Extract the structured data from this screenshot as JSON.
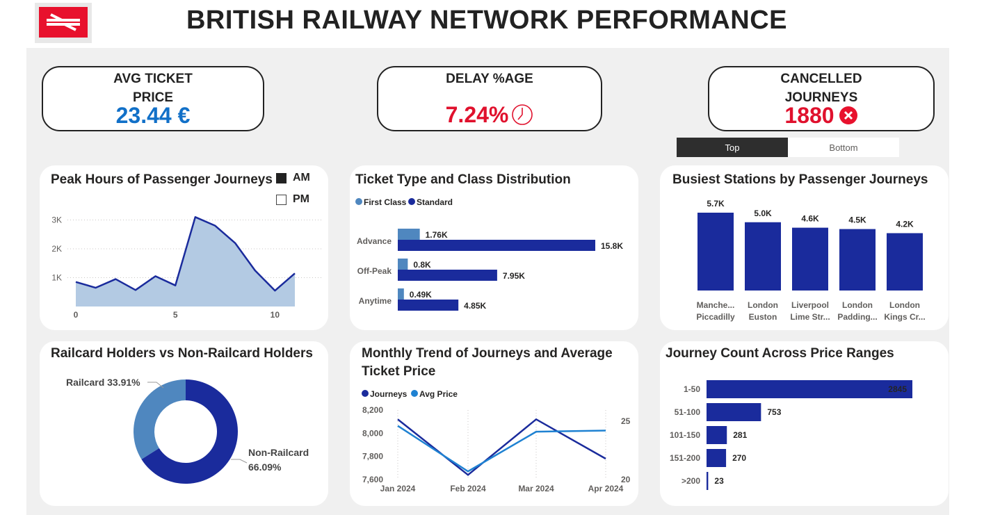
{
  "header": {
    "title": "BRITISH RAILWAY NETWORK PERFORMANCE",
    "brand_color": "#e8112d"
  },
  "kpis": {
    "avg_ticket": {
      "label_line1": "AVG TICKET",
      "label_line2": "PRICE",
      "value": "23.44 €",
      "color": "#1170c8"
    },
    "delay": {
      "label": "DELAY %AGE",
      "value": "7.24%",
      "icon": "clock-icon",
      "color": "#e0112d"
    },
    "cancelled": {
      "label_line1": "CANCELLED",
      "label_line2": "JOURNEYS",
      "value": "1880",
      "icon": "x-circle-icon",
      "color": "#e0112d"
    }
  },
  "toggle": {
    "top_label": "Top",
    "bottom_label": "Bottom",
    "selected": "Top"
  },
  "charts": {
    "peak_hours": {
      "title": "Peak Hours of Passenger Journeys",
      "legend": [
        {
          "label": "AM",
          "checked": true
        },
        {
          "label": "PM",
          "checked": false
        }
      ],
      "ytick_labels": [
        "1K",
        "2K",
        "3K"
      ],
      "xtick_labels": [
        "0",
        "5",
        "10"
      ]
    },
    "ticket_type": {
      "title": "Ticket Type and Class Distribution",
      "legend": [
        "First Class",
        "Standard"
      ]
    },
    "busiest": {
      "title": "Busiest Stations by Passenger Journeys"
    },
    "railcard": {
      "title": "Railcard Holders vs Non-Railcard Holders",
      "label_railcard": "Railcard 33.91%",
      "label_non_line1": "Non-Railcard",
      "label_non_line2": "66.09%"
    },
    "monthly": {
      "title_line1": "Monthly Trend of Journeys and Average",
      "title_line2": "Ticket Price",
      "legend": [
        "Journeys",
        "Avg Price"
      ],
      "left_ticks": [
        "7,600",
        "7,800",
        "8,000",
        "8,200"
      ],
      "right_ticks": [
        "20",
        "25"
      ]
    },
    "price_ranges": {
      "title": "Journey Count Across Price Ranges"
    }
  },
  "chart_data": [
    {
      "type": "area",
      "title": "Peak Hours of Passenger Journeys",
      "x": [
        0,
        1,
        2,
        3,
        4,
        5,
        6,
        7,
        8,
        9,
        10,
        11
      ],
      "values": [
        850,
        650,
        950,
        570,
        1050,
        730,
        3100,
        2800,
        2200,
        1250,
        550,
        1150
      ],
      "ylim": [
        0,
        3300
      ],
      "xlim": [
        0,
        11
      ],
      "series_color": "#1a2b9c",
      "fill_color": "#b3cae3"
    },
    {
      "type": "bar",
      "orientation": "horizontal",
      "title": "Ticket Type and Class Distribution",
      "categories": [
        "Advance",
        "Off-Peak",
        "Anytime"
      ],
      "series": [
        {
          "name": "First Class",
          "values": [
            1.76,
            0.8,
            0.49
          ],
          "labels": [
            "1.76K",
            "0.8K",
            "0.49K"
          ],
          "color": "#4f87bf"
        },
        {
          "name": "Standard",
          "values": [
            15.8,
            7.95,
            4.85
          ],
          "labels": [
            "15.8K",
            "7.95K",
            "4.85K"
          ],
          "color": "#1a2b9c"
        }
      ]
    },
    {
      "type": "bar",
      "title": "Busiest Stations by Passenger Journeys",
      "categories": [
        [
          "Manche...",
          "Piccadilly"
        ],
        [
          "London",
          "Euston"
        ],
        [
          "Liverpool",
          "Lime Str..."
        ],
        [
          "London",
          "Padding..."
        ],
        [
          "London",
          "Kings Cr..."
        ]
      ],
      "values": [
        5.7,
        5.0,
        4.6,
        4.5,
        4.2
      ],
      "labels": [
        "5.7K",
        "5.0K",
        "4.6K",
        "4.5K",
        "4.2K"
      ],
      "color": "#1a2b9c"
    },
    {
      "type": "pie",
      "title": "Railcard Holders vs Non-Railcard Holders",
      "slices": [
        {
          "name": "Railcard",
          "value": 33.91,
          "color": "#4f87bf"
        },
        {
          "name": "Non-Railcard",
          "value": 66.09,
          "color": "#1a2b9c"
        }
      ]
    },
    {
      "type": "line",
      "title": "Monthly Trend of Journeys and Average Ticket Price",
      "categories": [
        "Jan 2024",
        "Feb 2024",
        "Mar 2024",
        "Apr 2024"
      ],
      "series": [
        {
          "name": "Journeys",
          "axis": "left",
          "values": [
            8120,
            7640,
            8120,
            7780
          ],
          "color": "#1a2b9c"
        },
        {
          "name": "Avg Price",
          "axis": "right",
          "values": [
            24.6,
            20.7,
            24.1,
            24.2
          ],
          "color": "#1f82d2"
        }
      ],
      "ylim_left": [
        7600,
        8200
      ],
      "ylim_right": [
        20,
        25
      ]
    },
    {
      "type": "bar",
      "orientation": "horizontal",
      "title": "Journey Count Across Price Ranges",
      "categories": [
        "1-50",
        "51-100",
        "101-150",
        "151-200",
        ">200"
      ],
      "values": [
        2845,
        753,
        281,
        270,
        23
      ],
      "color": "#1a2b9c"
    }
  ]
}
